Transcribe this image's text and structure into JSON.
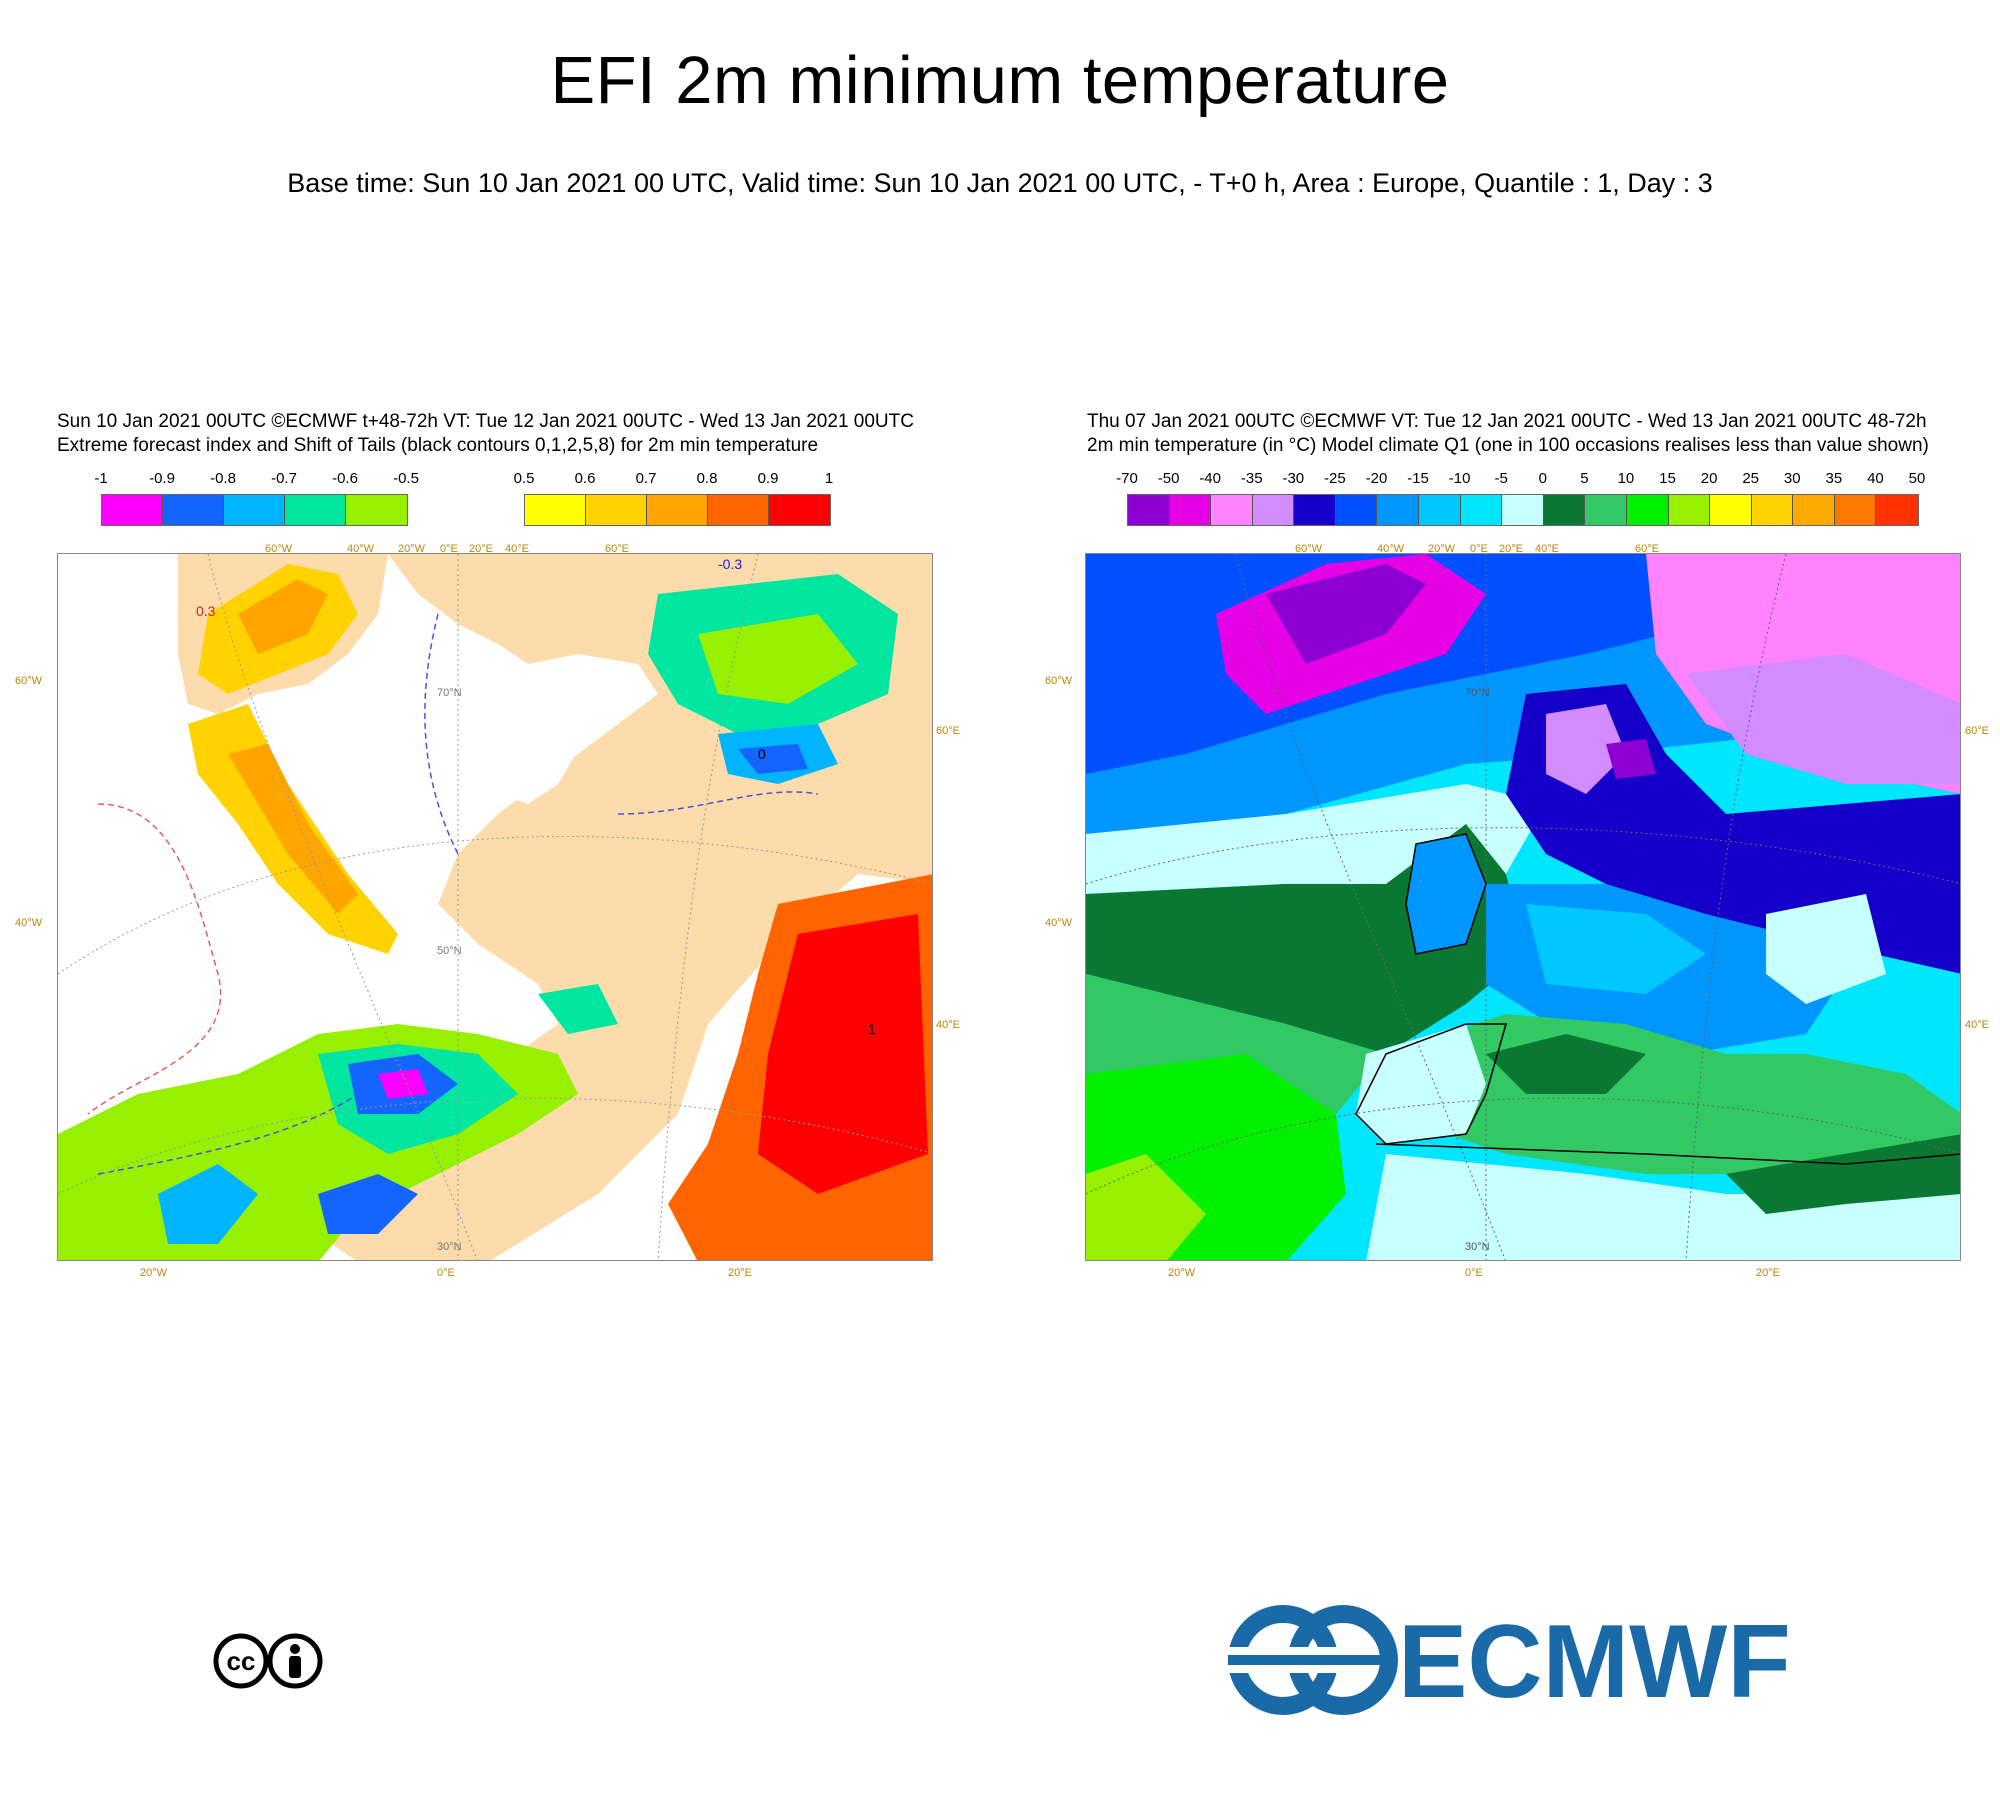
{
  "title": "EFI 2m minimum temperature",
  "subtitle": "Base time: Sun 10 Jan 2021 00 UTC, Valid time: Sun 10 Jan 2021 00 UTC, - T+0 h, Area : Europe, Quantile : 1, Day : 3",
  "left_panel": {
    "header_line1": "Sun 10 Jan 2021 00UTC ©ECMWF t+48-72h  VT: Tue 12 Jan 2021 00UTC - Wed 13 Jan 2021 00UTC",
    "header_line2": "Extreme forecast index and Shift of Tails (black contours 0,1,2,5,8) for 2m min temperature",
    "colorbar_negative": {
      "ticks": [
        "-1",
        "-0.9",
        "-0.8",
        "-0.7",
        "-0.6",
        "-0.5"
      ],
      "colors": [
        "#ff00ff",
        "#1464ff",
        "#00b4ff",
        "#00e6a0",
        "#96f000"
      ]
    },
    "colorbar_positive": {
      "ticks": [
        "0.5",
        "0.6",
        "0.7",
        "0.8",
        "0.9",
        "1"
      ],
      "colors": [
        "#ffff00",
        "#ffd200",
        "#ffa500",
        "#ff6400",
        "#ff0000"
      ]
    },
    "contour_labels": [
      "0.3",
      "-0.3",
      "0",
      "1"
    ],
    "top_axis_labels": [
      "60°W",
      "40°W",
      "20°W",
      "0°E",
      "20°E",
      "40°E",
      "60°E"
    ],
    "bottom_axis_labels": [
      "20°W",
      "0°E",
      "20°E"
    ],
    "left_axis_labels": [
      "60°W",
      "40°W"
    ],
    "right_axis_labels": [
      "60°E",
      "40°E"
    ],
    "inner_lat_labels": [
      "70°N",
      "50°N",
      "30°N"
    ]
  },
  "right_panel": {
    "header_line1": "Thu 07 Jan 2021 00UTC ©ECMWF VT: Tue 12 Jan 2021 00UTC - Wed 13 Jan 2021 00UTC   48-72h",
    "header_line2": "2m min temperature (in °C)  Model climate Q1 (one in 100 occasions realises less than value shown)",
    "colorbar": {
      "ticks": [
        "-70",
        "-50",
        "-40",
        "-35",
        "-30",
        "-25",
        "-20",
        "-15",
        "-10",
        "-5",
        "0",
        "5",
        "10",
        "15",
        "20",
        "25",
        "30",
        "35",
        "40",
        "50"
      ],
      "colors": [
        "#8c00d2",
        "#e600e6",
        "#ff82ff",
        "#d28cff",
        "#1400c8",
        "#0050ff",
        "#0096ff",
        "#00c8ff",
        "#00e6ff",
        "#c8ffff",
        "#0a7832",
        "#32c864",
        "#00f000",
        "#96f000",
        "#ffff00",
        "#ffd200",
        "#ffaa00",
        "#ff7800",
        "#ff3200"
      ]
    },
    "top_axis_labels": [
      "60°W",
      "40°W",
      "20°W",
      "0°E",
      "20°E",
      "40°E",
      "60°E"
    ],
    "bottom_axis_labels": [
      "20°W",
      "0°E",
      "20°E"
    ],
    "left_axis_labels": [
      "60°W",
      "40°W"
    ],
    "right_axis_labels": [
      "60°E",
      "40°E"
    ],
    "inner_lat_labels": [
      "70°N",
      "30°N"
    ]
  },
  "logos": {
    "cc_logo_text": "cc",
    "ecmwf_logo_text": "ECMWF",
    "ecmwf_color": "#1a6aa8"
  }
}
